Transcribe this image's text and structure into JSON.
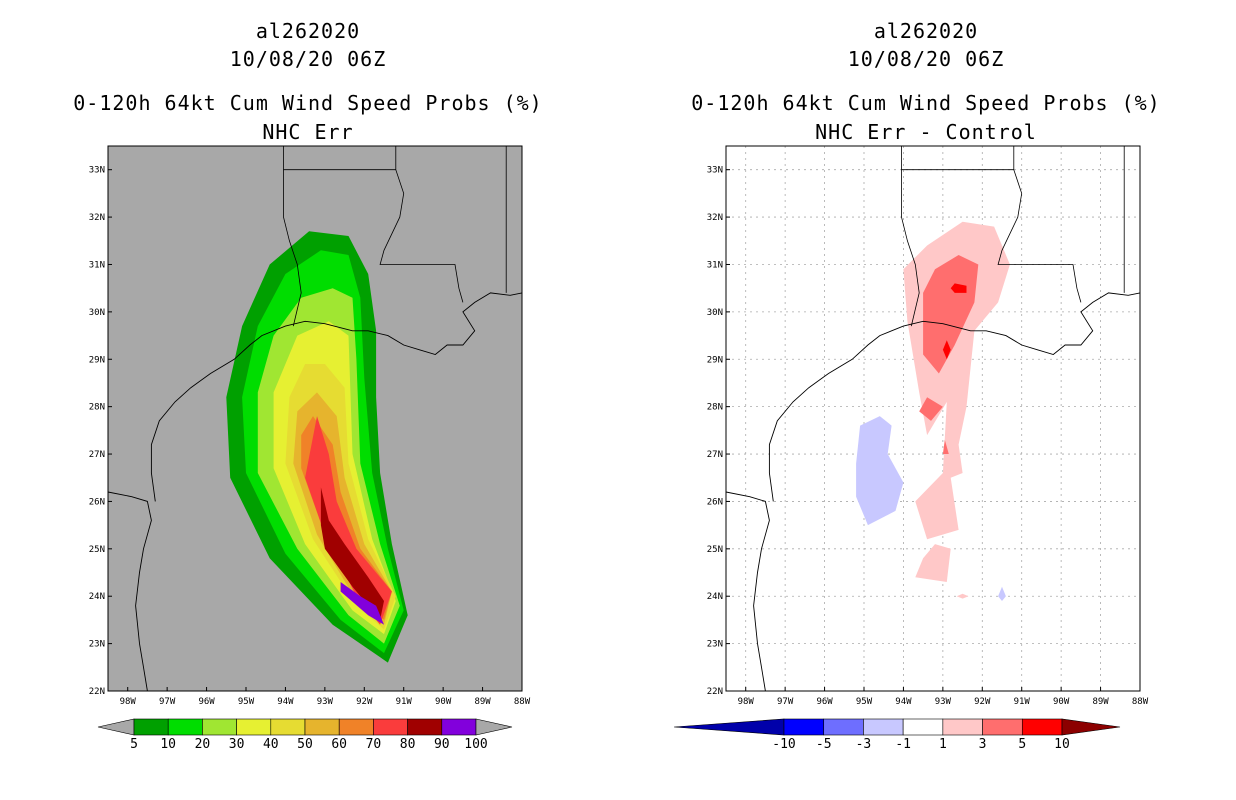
{
  "chart_data": [
    {
      "type": "filled-contour-map",
      "storm_id": "al262020",
      "datetime": "10/08/20 06Z",
      "title": "0-120h 64kt Cum Wind Speed Probs (%)",
      "subtitle": "NHC Err",
      "lon_range": [
        -98.5,
        -88
      ],
      "lat_range": [
        22,
        33.5
      ],
      "xticks": [
        "98W",
        "97W",
        "96W",
        "95W",
        "94W",
        "93W",
        "92W",
        "91W",
        "90W",
        "89W",
        "88W"
      ],
      "yticks": [
        "22N",
        "23N",
        "24N",
        "25N",
        "26N",
        "27N",
        "28N",
        "29N",
        "30N",
        "31N",
        "32N",
        "33N"
      ],
      "grid": false,
      "background_color": "#a8a8a8",
      "colorbar_labels": [
        "5",
        "10",
        "20",
        "30",
        "40",
        "50",
        "60",
        "70",
        "80",
        "90",
        "100"
      ],
      "colorbar_colors": [
        "#00a000",
        "#00dd00",
        "#a0e632",
        "#e6f032",
        "#e6dc32",
        "#e6b42d",
        "#f08228",
        "#fa3c3c",
        "#a00000",
        "#8200dc"
      ],
      "contours": [
        {
          "level": 5,
          "color": "#00a000",
          "polygon": [
            [
              -93.4,
              31.7
            ],
            [
              -92.4,
              31.6
            ],
            [
              -91.9,
              30.8
            ],
            [
              -91.7,
              29.6
            ],
            [
              -91.7,
              28.2
            ],
            [
              -91.6,
              26.6
            ],
            [
              -91.3,
              25.1
            ],
            [
              -90.9,
              23.6
            ],
            [
              -91.4,
              22.6
            ],
            [
              -92.8,
              23.4
            ],
            [
              -94.4,
              24.8
            ],
            [
              -95.4,
              26.5
            ],
            [
              -95.5,
              28.2
            ],
            [
              -95.1,
              29.7
            ],
            [
              -94.4,
              31.0
            ]
          ]
        },
        {
          "level": 10,
          "color": "#00dd00",
          "polygon": [
            [
              -93.1,
              31.3
            ],
            [
              -92.4,
              31.2
            ],
            [
              -92.1,
              30.3
            ],
            [
              -92.0,
              28.6
            ],
            [
              -91.8,
              26.6
            ],
            [
              -91.4,
              25.0
            ],
            [
              -91.0,
              23.7
            ],
            [
              -91.5,
              22.8
            ],
            [
              -92.6,
              23.5
            ],
            [
              -94.0,
              24.9
            ],
            [
              -95.0,
              26.6
            ],
            [
              -95.1,
              28.2
            ],
            [
              -94.7,
              29.7
            ],
            [
              -94.0,
              30.8
            ]
          ]
        },
        {
          "level": 20,
          "color": "#a0e632",
          "polygon": [
            [
              -92.8,
              30.5
            ],
            [
              -92.3,
              30.3
            ],
            [
              -92.2,
              29.0
            ],
            [
              -92.1,
              26.8
            ],
            [
              -91.6,
              25.1
            ],
            [
              -91.1,
              23.8
            ],
            [
              -91.5,
              23.0
            ],
            [
              -92.4,
              23.6
            ],
            [
              -93.7,
              25.0
            ],
            [
              -94.7,
              26.6
            ],
            [
              -94.7,
              28.3
            ],
            [
              -94.3,
              29.5
            ],
            [
              -93.6,
              30.3
            ]
          ]
        },
        {
          "level": 30,
          "color": "#e6f032",
          "polygon": [
            [
              -92.9,
              29.8
            ],
            [
              -92.4,
              29.5
            ],
            [
              -92.3,
              27.0
            ],
            [
              -91.8,
              25.2
            ],
            [
              -91.2,
              23.9
            ],
            [
              -91.5,
              23.2
            ],
            [
              -92.3,
              23.7
            ],
            [
              -93.5,
              25.1
            ],
            [
              -94.3,
              26.7
            ],
            [
              -94.3,
              28.3
            ],
            [
              -93.7,
              29.5
            ]
          ]
        },
        {
          "level": 40,
          "color": "#e6dc32",
          "polygon": [
            [
              -93.0,
              28.9
            ],
            [
              -92.5,
              28.4
            ],
            [
              -92.4,
              26.8
            ],
            [
              -91.9,
              25.2
            ],
            [
              -91.2,
              24.0
            ],
            [
              -91.5,
              23.3
            ],
            [
              -92.2,
              23.8
            ],
            [
              -93.3,
              25.2
            ],
            [
              -94.0,
              26.8
            ],
            [
              -93.9,
              28.2
            ],
            [
              -93.5,
              28.9
            ]
          ]
        },
        {
          "level": 50,
          "color": "#e6b42d",
          "polygon": [
            [
              -93.2,
              28.3
            ],
            [
              -92.7,
              27.8
            ],
            [
              -92.5,
              26.5
            ],
            [
              -92.0,
              25.1
            ],
            [
              -91.3,
              24.1
            ],
            [
              -91.5,
              23.4
            ],
            [
              -92.2,
              23.9
            ],
            [
              -93.2,
              25.3
            ],
            [
              -93.8,
              26.8
            ],
            [
              -93.7,
              27.9
            ]
          ]
        },
        {
          "level": 60,
          "color": "#f08228",
          "polygon": [
            [
              -93.3,
              27.8
            ],
            [
              -92.8,
              27.2
            ],
            [
              -92.6,
              26.2
            ],
            [
              -92.1,
              25.0
            ],
            [
              -91.3,
              24.1
            ],
            [
              -91.5,
              23.5
            ],
            [
              -92.1,
              24.0
            ],
            [
              -93.0,
              25.3
            ],
            [
              -93.6,
              26.7
            ],
            [
              -93.6,
              27.4
            ]
          ]
        },
        {
          "level": 70,
          "color": "#fa3c3c",
          "polygon": [
            [
              -93.2,
              27.8
            ],
            [
              -92.9,
              27.0
            ],
            [
              -92.7,
              26.0
            ],
            [
              -92.2,
              25.0
            ],
            [
              -91.3,
              24.1
            ],
            [
              -91.6,
              23.4
            ],
            [
              -92.2,
              24.0
            ],
            [
              -93.0,
              25.3
            ],
            [
              -93.5,
              26.5
            ]
          ]
        },
        {
          "level": 80,
          "color": "#a00000",
          "polygon": [
            [
              -93.1,
              26.3
            ],
            [
              -92.9,
              25.6
            ],
            [
              -92.5,
              25.1
            ],
            [
              -91.9,
              24.4
            ],
            [
              -91.5,
              23.9
            ],
            [
              -91.6,
              23.5
            ],
            [
              -92.3,
              24.2
            ],
            [
              -93.0,
              25.0
            ],
            [
              -93.1,
              25.5
            ]
          ]
        },
        {
          "level": 90,
          "color": "#8200dc",
          "polygon": [
            [
              -92.6,
              24.3
            ],
            [
              -92.1,
              24.0
            ],
            [
              -91.7,
              23.8
            ],
            [
              -91.5,
              23.4
            ],
            [
              -91.9,
              23.6
            ],
            [
              -92.6,
              24.1
            ]
          ]
        }
      ]
    },
    {
      "type": "filled-contour-map",
      "storm_id": "al262020",
      "datetime": "10/08/20 06Z",
      "title": "0-120h 64kt Cum Wind Speed Probs (%)",
      "subtitle": "NHC Err - Control",
      "lon_range": [
        -98.5,
        -88
      ],
      "lat_range": [
        22,
        33.5
      ],
      "xticks": [
        "98W",
        "97W",
        "96W",
        "95W",
        "94W",
        "93W",
        "92W",
        "91W",
        "90W",
        "89W",
        "88W"
      ],
      "yticks": [
        "22N",
        "23N",
        "24N",
        "25N",
        "26N",
        "27N",
        "28N",
        "29N",
        "30N",
        "31N",
        "32N",
        "33N"
      ],
      "grid": true,
      "background_color": "#ffffff",
      "colorbar_labels": [
        "-10",
        "-5",
        "-3",
        "-1",
        "1",
        "3",
        "5",
        "10"
      ],
      "colorbar_colors": [
        "#0000aa",
        "#0000ff",
        "#6e6eff",
        "#c8c8ff",
        "#ffffff",
        "#ffc8c8",
        "#ff6e6e",
        "#ff0000",
        "#8c0000"
      ],
      "contours": [
        {
          "level": 1,
          "color": "#ffc8c8",
          "polygon": [
            [
              -92.5,
              31.9
            ],
            [
              -91.7,
              31.8
            ],
            [
              -91.3,
              31.0
            ],
            [
              -91.6,
              30.2
            ],
            [
              -92.2,
              29.6
            ],
            [
              -92.4,
              28.0
            ],
            [
              -92.6,
              27.2
            ],
            [
              -92.5,
              26.6
            ],
            [
              -92.8,
              26.5
            ],
            [
              -92.6,
              25.4
            ],
            [
              -93.4,
              25.2
            ],
            [
              -93.7,
              26.0
            ],
            [
              -93.0,
              26.6
            ],
            [
              -92.9,
              28.1
            ],
            [
              -93.4,
              27.4
            ],
            [
              -93.6,
              28.3
            ],
            [
              -93.9,
              29.8
            ],
            [
              -94.0,
              30.9
            ],
            [
              -93.4,
              31.4
            ]
          ]
        },
        {
          "level": 1,
          "color": "#ffc8c8",
          "polygon": [
            [
              -93.2,
              25.1
            ],
            [
              -92.8,
              25.0
            ],
            [
              -92.9,
              24.3
            ],
            [
              -93.7,
              24.4
            ],
            [
              -93.5,
              24.8
            ]
          ]
        },
        {
          "level": 1,
          "color": "#ffc8c8",
          "polygon": [
            [
              -92.5,
              24.05
            ],
            [
              -92.35,
              24.0
            ],
            [
              -92.5,
              23.95
            ],
            [
              -92.65,
              24.0
            ]
          ]
        },
        {
          "level": 3,
          "color": "#ff6e6e",
          "polygon": [
            [
              -92.6,
              31.2
            ],
            [
              -92.1,
              31.0
            ],
            [
              -92.2,
              30.2
            ],
            [
              -92.7,
              29.3
            ],
            [
              -93.1,
              28.7
            ],
            [
              -93.5,
              29.1
            ],
            [
              -93.5,
              30.4
            ],
            [
              -93.2,
              30.9
            ]
          ]
        },
        {
          "level": 3,
          "color": "#ff6e6e",
          "polygon": [
            [
              -93.4,
              28.2
            ],
            [
              -93.0,
              28.0
            ],
            [
              -93.3,
              27.7
            ],
            [
              -93.6,
              27.9
            ]
          ]
        },
        {
          "level": 3,
          "color": "#ff6e6e",
          "polygon": [
            [
              -92.95,
              27.3
            ],
            [
              -92.85,
              27.0
            ],
            [
              -93.0,
              27.0
            ]
          ]
        },
        {
          "level": 5,
          "color": "#ff0000",
          "polygon": [
            [
              -92.7,
              30.6
            ],
            [
              -92.4,
              30.55
            ],
            [
              -92.4,
              30.4
            ],
            [
              -92.7,
              30.4
            ],
            [
              -92.8,
              30.5
            ]
          ]
        },
        {
          "level": 5,
          "color": "#ff0000",
          "polygon": [
            [
              -92.9,
              29.4
            ],
            [
              -92.8,
              29.2
            ],
            [
              -92.9,
              29.0
            ],
            [
              -93.0,
              29.2
            ]
          ]
        },
        {
          "level": -1,
          "color": "#c8c8ff",
          "polygon": [
            [
              -94.6,
              27.8
            ],
            [
              -94.3,
              27.6
            ],
            [
              -94.4,
              27.0
            ],
            [
              -94.0,
              26.4
            ],
            [
              -94.2,
              25.8
            ],
            [
              -94.9,
              25.5
            ],
            [
              -95.2,
              26.1
            ],
            [
              -95.2,
              26.8
            ],
            [
              -95.1,
              27.6
            ]
          ]
        },
        {
          "level": -1,
          "color": "#c8c8ff",
          "polygon": [
            [
              -91.5,
              24.2
            ],
            [
              -91.4,
              24.0
            ],
            [
              -91.5,
              23.9
            ],
            [
              -91.6,
              24.0
            ]
          ]
        }
      ]
    }
  ],
  "coast": [
    [
      [
        -98.5,
        26.2
      ],
      [
        -97.9,
        26.1
      ],
      [
        -97.5,
        26.0
      ],
      [
        -97.4,
        25.6
      ],
      [
        -97.6,
        25.0
      ],
      [
        -97.7,
        24.5
      ],
      [
        -97.8,
        23.8
      ],
      [
        -97.7,
        23.0
      ],
      [
        -97.6,
        22.5
      ],
      [
        -97.5,
        22.0
      ]
    ],
    [
      [
        -97.3,
        26.0
      ],
      [
        -97.4,
        26.6
      ],
      [
        -97.4,
        27.2
      ],
      [
        -97.2,
        27.7
      ],
      [
        -96.8,
        28.1
      ],
      [
        -96.4,
        28.4
      ],
      [
        -95.9,
        28.7
      ],
      [
        -95.3,
        29.0
      ],
      [
        -94.9,
        29.3
      ],
      [
        -94.6,
        29.5
      ],
      [
        -94.0,
        29.7
      ],
      [
        -93.5,
        29.8
      ],
      [
        -93.0,
        29.75
      ],
      [
        -92.3,
        29.6
      ],
      [
        -91.9,
        29.6
      ],
      [
        -91.4,
        29.5
      ],
      [
        -91.0,
        29.3
      ],
      [
        -90.6,
        29.2
      ],
      [
        -90.2,
        29.1
      ],
      [
        -89.9,
        29.3
      ],
      [
        -89.5,
        29.3
      ],
      [
        -89.2,
        29.6
      ],
      [
        -89.5,
        30.0
      ],
      [
        -89.2,
        30.2
      ],
      [
        -88.8,
        30.4
      ],
      [
        -88.3,
        30.35
      ],
      [
        -88.0,
        30.4
      ]
    ]
  ],
  "borders": [
    [
      [
        -94.05,
        33.5
      ],
      [
        -94.05,
        33.0
      ],
      [
        -93.3,
        33.0
      ],
      [
        -91.2,
        33.0
      ]
    ],
    [
      [
        -94.05,
        33.0
      ],
      [
        -94.05,
        32.0
      ],
      [
        -93.9,
        31.5
      ],
      [
        -93.7,
        31.0
      ],
      [
        -93.6,
        30.4
      ],
      [
        -93.8,
        29.7
      ]
    ],
    [
      [
        -91.2,
        33.5
      ],
      [
        -91.2,
        33.0
      ],
      [
        -91.0,
        32.5
      ],
      [
        -91.1,
        32.0
      ],
      [
        -91.5,
        31.3
      ],
      [
        -91.6,
        31.0
      ],
      [
        -89.7,
        31.0
      ],
      [
        -89.6,
        30.5
      ],
      [
        -89.5,
        30.2
      ]
    ],
    [
      [
        -88.4,
        33.5
      ],
      [
        -88.4,
        31.5
      ],
      [
        -88.4,
        30.4
      ]
    ]
  ]
}
